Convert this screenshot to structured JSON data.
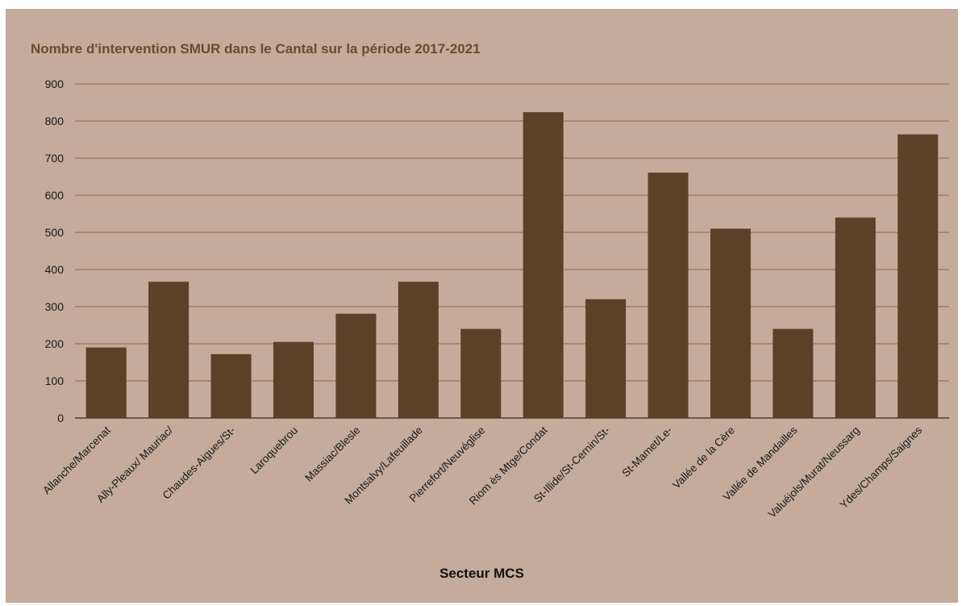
{
  "chart_data": {
    "type": "bar",
    "title": "Nombre d'intervention SMUR dans le Cantal sur la période 2017-2021",
    "xlabel": "Secteur MCS",
    "ylabel": "",
    "ylim": [
      0,
      900
    ],
    "yticks": [
      0,
      100,
      200,
      300,
      400,
      500,
      600,
      700,
      800,
      900
    ],
    "grid": true,
    "legend": "none",
    "categories": [
      "Allanche/Marcenat",
      "Ally-Pleaux/ Mauriac/",
      "Chaudes-Aigues/St-",
      "Laroquebrou",
      "Massiac/Blesle",
      "Montsalvy/Lafeuillade",
      "Pierrefort/Neuvéglise",
      "Riom ès Mtge/Condat",
      "St-Illide/St-Cernin/St-",
      "St-Mamet/Le-",
      "Vallée de la Cère",
      "Vallée de Mandailles",
      "Valuéjols/Murat/Neussarg",
      "Ydes/Champs/Saignes"
    ],
    "values": [
      190,
      367,
      172,
      205,
      281,
      367,
      240,
      824,
      320,
      661,
      510,
      240,
      540,
      764
    ],
    "colors": {
      "background": "#c4ab9b",
      "bar": "#5c4129",
      "grid": "#8a6a52",
      "title": "#6b4a30"
    }
  }
}
